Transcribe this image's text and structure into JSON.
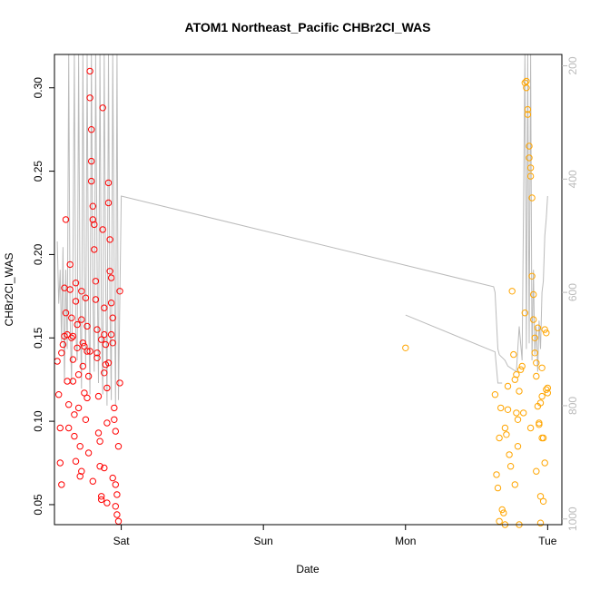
{
  "chart_data": {
    "type": "scatter",
    "title": "ATOM1 Northeast_Pacific CHBr2Cl_WAS",
    "xlabel": "Date",
    "ylabel": "CHBr2Cl_WAS",
    "x_tick_labels": [
      "Sat",
      "Sun",
      "Mon",
      "Tue"
    ],
    "x_tick_values": [
      1,
      2,
      3,
      4
    ],
    "xlim": [
      0.53,
      4.1
    ],
    "ylim": [
      0.038,
      0.32
    ],
    "y_ticks": [
      0.05,
      0.1,
      0.15,
      0.2,
      0.25,
      0.3
    ],
    "y_tick_labels": [
      "0.05",
      "0.10",
      "0.15",
      "0.20",
      "0.25",
      "0.30"
    ],
    "y2_ticks": [
      200,
      400,
      600,
      800,
      1000
    ],
    "y2_tick_labels": [
      "200",
      "400",
      "600",
      "800",
      "1000"
    ],
    "y2lim_reversed": [
      180,
      1010
    ],
    "grid": false,
    "colors": {
      "series_a": "#ff0000",
      "series_b": "#ffa500",
      "secondary_line": "#bbbbbb",
      "axis": "#000000",
      "right_axis": "#bbbbbb"
    },
    "series": [
      {
        "marker": "circle",
        "color": "#ff0000",
        "points": [
          [
            0.55,
            0.136
          ],
          [
            0.56,
            0.116
          ],
          [
            0.57,
            0.096
          ],
          [
            0.57,
            0.075
          ],
          [
            0.58,
            0.062
          ],
          [
            0.58,
            0.141
          ],
          [
            0.59,
            0.146
          ],
          [
            0.6,
            0.151
          ],
          [
            0.6,
            0.18
          ],
          [
            0.61,
            0.221
          ],
          [
            0.61,
            0.165
          ],
          [
            0.62,
            0.152
          ],
          [
            0.62,
            0.124
          ],
          [
            0.63,
            0.11
          ],
          [
            0.63,
            0.096
          ],
          [
            0.64,
            0.194
          ],
          [
            0.64,
            0.179
          ],
          [
            0.65,
            0.162
          ],
          [
            0.65,
            0.15
          ],
          [
            0.66,
            0.137
          ],
          [
            0.66,
            0.124
          ],
          [
            0.67,
            0.104
          ],
          [
            0.67,
            0.091
          ],
          [
            0.68,
            0.183
          ],
          [
            0.68,
            0.172
          ],
          [
            0.69,
            0.158
          ],
          [
            0.69,
            0.144
          ],
          [
            0.7,
            0.128
          ],
          [
            0.7,
            0.108
          ],
          [
            0.71,
            0.085
          ],
          [
            0.71,
            0.067
          ],
          [
            0.72,
            0.178
          ],
          [
            0.72,
            0.161
          ],
          [
            0.73,
            0.147
          ],
          [
            0.73,
            0.133
          ],
          [
            0.74,
            0.117
          ],
          [
            0.75,
            0.101
          ],
          [
            0.75,
            0.174
          ],
          [
            0.76,
            0.157
          ],
          [
            0.76,
            0.142
          ],
          [
            0.77,
            0.127
          ],
          [
            0.77,
            0.081
          ],
          [
            0.78,
            0.31
          ],
          [
            0.78,
            0.294
          ],
          [
            0.79,
            0.275
          ],
          [
            0.79,
            0.256
          ],
          [
            0.79,
            0.244
          ],
          [
            0.8,
            0.229
          ],
          [
            0.8,
            0.221
          ],
          [
            0.81,
            0.218
          ],
          [
            0.81,
            0.203
          ],
          [
            0.82,
            0.184
          ],
          [
            0.82,
            0.173
          ],
          [
            0.83,
            0.155
          ],
          [
            0.83,
            0.138
          ],
          [
            0.84,
            0.115
          ],
          [
            0.84,
            0.093
          ],
          [
            0.85,
            0.088
          ],
          [
            0.85,
            0.073
          ],
          [
            0.86,
            0.055
          ],
          [
            0.86,
            0.053
          ],
          [
            0.87,
            0.288
          ],
          [
            0.87,
            0.215
          ],
          [
            0.88,
            0.168
          ],
          [
            0.88,
            0.152
          ],
          [
            0.89,
            0.146
          ],
          [
            0.89,
            0.134
          ],
          [
            0.9,
            0.12
          ],
          [
            0.9,
            0.099
          ],
          [
            0.91,
            0.243
          ],
          [
            0.91,
            0.231
          ],
          [
            0.92,
            0.209
          ],
          [
            0.92,
            0.19
          ],
          [
            0.93,
            0.186
          ],
          [
            0.93,
            0.171
          ],
          [
            0.94,
            0.162
          ],
          [
            0.94,
            0.147
          ],
          [
            0.95,
            0.108
          ],
          [
            0.95,
            0.101
          ],
          [
            0.96,
            0.094
          ],
          [
            0.96,
            0.062
          ],
          [
            0.97,
            0.056
          ],
          [
            0.97,
            0.044
          ],
          [
            0.98,
            0.04
          ],
          [
            0.98,
            0.085
          ],
          [
            0.99,
            0.123
          ],
          [
            0.99,
            0.178
          ],
          [
            0.66,
            0.151
          ],
          [
            0.74,
            0.145
          ],
          [
            0.78,
            0.142
          ],
          [
            0.83,
            0.141
          ],
          [
            0.86,
            0.149
          ],
          [
            0.88,
            0.129
          ],
          [
            0.91,
            0.135
          ],
          [
            0.93,
            0.152
          ],
          [
            0.68,
            0.076
          ],
          [
            0.72,
            0.07
          ],
          [
            0.76,
            0.114
          ],
          [
            0.8,
            0.064
          ],
          [
            0.88,
            0.072
          ],
          [
            0.9,
            0.051
          ],
          [
            0.94,
            0.066
          ],
          [
            0.96,
            0.049
          ]
        ]
      },
      {
        "marker": "circle",
        "color": "#ffa500",
        "points": [
          [
            3.0,
            0.144
          ],
          [
            3.63,
            0.116
          ],
          [
            3.64,
            0.068
          ],
          [
            3.65,
            0.06
          ],
          [
            3.66,
            0.04
          ],
          [
            3.66,
            0.09
          ],
          [
            3.67,
            0.108
          ],
          [
            3.68,
            0.047
          ],
          [
            3.69,
            0.045
          ],
          [
            3.7,
            0.038
          ],
          [
            3.7,
            0.096
          ],
          [
            3.71,
            0.092
          ],
          [
            3.72,
            0.121
          ],
          [
            3.72,
            0.107
          ],
          [
            3.73,
            0.08
          ],
          [
            3.74,
            0.073
          ],
          [
            3.75,
            0.178
          ],
          [
            3.76,
            0.14
          ],
          [
            3.77,
            0.125
          ],
          [
            3.78,
            0.128
          ],
          [
            3.78,
            0.105
          ],
          [
            3.79,
            0.101
          ],
          [
            3.79,
            0.085
          ],
          [
            3.8,
            0.038
          ],
          [
            3.8,
            0.118
          ],
          [
            3.81,
            0.131
          ],
          [
            3.82,
            0.133
          ],
          [
            3.83,
            0.105
          ],
          [
            3.84,
            0.303
          ],
          [
            3.85,
            0.304
          ],
          [
            3.85,
            0.3
          ],
          [
            3.86,
            0.287
          ],
          [
            3.86,
            0.284
          ],
          [
            3.87,
            0.265
          ],
          [
            3.87,
            0.258
          ],
          [
            3.88,
            0.247
          ],
          [
            3.88,
            0.252
          ],
          [
            3.89,
            0.234
          ],
          [
            3.89,
            0.187
          ],
          [
            3.9,
            0.176
          ],
          [
            3.9,
            0.161
          ],
          [
            3.91,
            0.141
          ],
          [
            3.92,
            0.135
          ],
          [
            3.92,
            0.127
          ],
          [
            3.93,
            0.109
          ],
          [
            3.94,
            0.098
          ],
          [
            3.94,
            0.099
          ],
          [
            3.95,
            0.039
          ],
          [
            3.95,
            0.111
          ],
          [
            3.96,
            0.115
          ],
          [
            3.96,
            0.132
          ],
          [
            3.97,
            0.09
          ],
          [
            3.97,
            0.052
          ],
          [
            3.98,
            0.075
          ],
          [
            3.98,
            0.155
          ],
          [
            3.99,
            0.153
          ],
          [
            4.0,
            0.12
          ],
          [
            4.0,
            0.117
          ],
          [
            3.84,
            0.165
          ],
          [
            3.91,
            0.15
          ],
          [
            3.93,
            0.156
          ],
          [
            3.96,
            0.09
          ],
          [
            3.99,
            0.119
          ],
          [
            3.77,
            0.062
          ],
          [
            3.88,
            0.096
          ],
          [
            3.92,
            0.07
          ],
          [
            3.95,
            0.055
          ]
        ]
      }
    ],
    "secondary_line_y2": [
      [
        0.55,
        510
      ],
      [
        0.56,
        620
      ],
      [
        0.57,
        560
      ],
      [
        0.58,
        690
      ],
      [
        0.59,
        520
      ],
      [
        0.6,
        760
      ],
      [
        0.61,
        560
      ],
      [
        0.62,
        700
      ],
      [
        0.63,
        180
      ],
      [
        0.64,
        640
      ],
      [
        0.65,
        760
      ],
      [
        0.66,
        540
      ],
      [
        0.67,
        180
      ],
      [
        0.68,
        670
      ],
      [
        0.69,
        720
      ],
      [
        0.7,
        180
      ],
      [
        0.71,
        620
      ],
      [
        0.72,
        770
      ],
      [
        0.73,
        180
      ],
      [
        0.74,
        560
      ],
      [
        0.75,
        730
      ],
      [
        0.76,
        180
      ],
      [
        0.77,
        640
      ],
      [
        0.78,
        780
      ],
      [
        0.79,
        180
      ],
      [
        0.8,
        600
      ],
      [
        0.81,
        740
      ],
      [
        0.82,
        180
      ],
      [
        0.83,
        560
      ],
      [
        0.84,
        760
      ],
      [
        0.85,
        180
      ],
      [
        0.86,
        640
      ],
      [
        0.87,
        780
      ],
      [
        0.88,
        180
      ],
      [
        0.89,
        580
      ],
      [
        0.9,
        800
      ],
      [
        0.91,
        180
      ],
      [
        0.92,
        620
      ],
      [
        0.93,
        790
      ],
      [
        0.94,
        180
      ],
      [
        0.95,
        560
      ],
      [
        0.96,
        800
      ],
      [
        0.97,
        180
      ],
      [
        0.98,
        790
      ],
      [
        1.0,
        430
      ],
      [
        3.62,
        590
      ],
      [
        3.63,
        600
      ],
      [
        3.65,
        700
      ],
      [
        3.66,
        710
      ],
      [
        3.7,
        720
      ],
      [
        3.72,
        730
      ],
      [
        3.78,
        740
      ],
      [
        3.8,
        660
      ],
      [
        3.82,
        720
      ],
      [
        3.84,
        180
      ],
      [
        3.85,
        700
      ],
      [
        3.86,
        180
      ],
      [
        3.87,
        690
      ],
      [
        3.88,
        180
      ],
      [
        3.89,
        720
      ],
      [
        3.9,
        560
      ],
      [
        3.91,
        710
      ],
      [
        3.92,
        660
      ],
      [
        3.93,
        740
      ],
      [
        3.94,
        650
      ],
      [
        3.95,
        700
      ],
      [
        3.96,
        600
      ],
      [
        3.97,
        580
      ],
      [
        3.98,
        500
      ],
      [
        3.99,
        470
      ],
      [
        4.0,
        430
      ]
    ],
    "secondary_line_b_y2": [
      [
        3.0,
        640
      ],
      [
        3.63,
        705
      ],
      [
        3.65,
        760
      ],
      [
        3.68,
        760
      ]
    ]
  }
}
